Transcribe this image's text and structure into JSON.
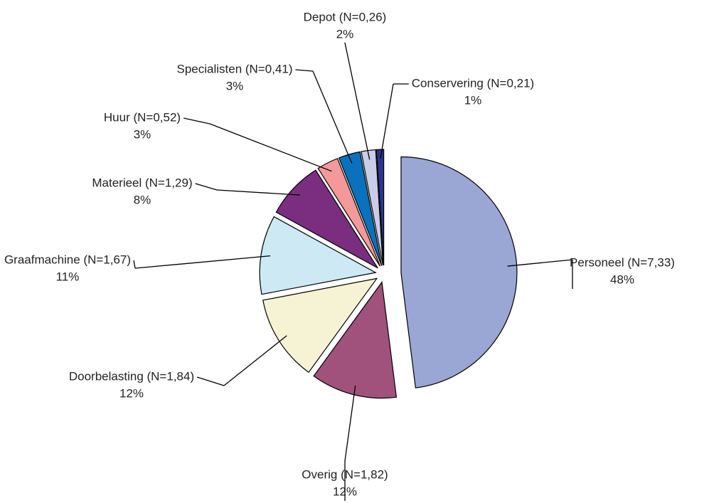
{
  "chart_data": {
    "type": "pie",
    "categories": [
      "Personeel (N=7,33)",
      "Overig (N=1,82)",
      "Doorbelasting (N=1,84)",
      "Graafmachine (N=1,67)",
      "Materieel (N=1,29)",
      "Huur (N=0,52)",
      "Specialisten (N=0,41)",
      "Depot (N=0,26)",
      "Conservering (N=0,21)"
    ],
    "values": [
      48,
      12,
      12,
      11,
      8,
      3,
      3,
      2,
      1
    ],
    "value_labels": [
      "48%",
      "12%",
      "12%",
      "11%",
      "8%",
      "3%",
      "3%",
      "2%",
      "1%"
    ],
    "colors": [
      "#9aa6d4",
      "#a0527c",
      "#f5f3d4",
      "#cde9f4",
      "#7b2e7f",
      "#f4999a",
      "#0a72bd",
      "#c9cde7",
      "#2a3591"
    ]
  }
}
